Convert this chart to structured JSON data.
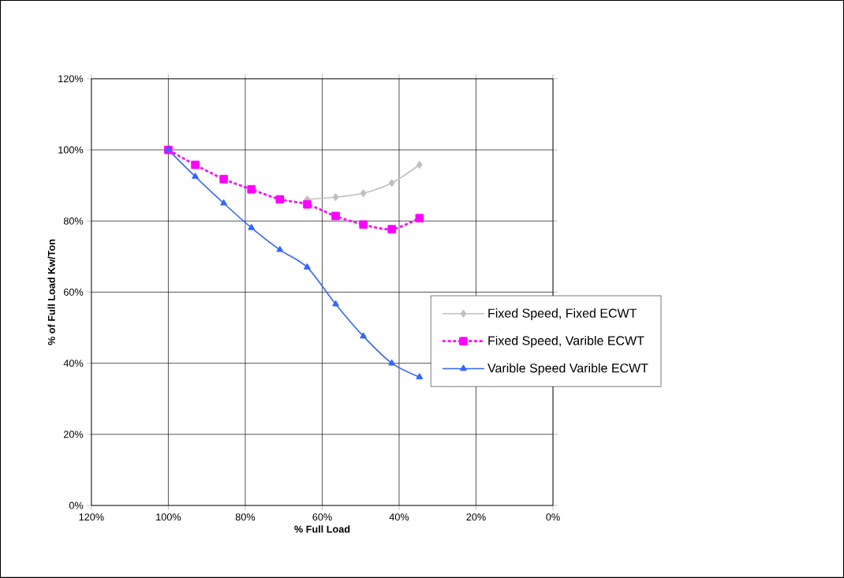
{
  "chart_data": {
    "type": "line",
    "xlabel": "% Full Load",
    "ylabel": "% of  Full Load Kw/Ton",
    "x": [
      100,
      93.0,
      85.6,
      78.4,
      71.0,
      63.9,
      56.5,
      49.3,
      41.9,
      34.7
    ],
    "series": [
      {
        "name": "Fixed Speed, Fixed ECWT",
        "color": "#c0c0c0",
        "marker": "diamond",
        "line_style": "solid",
        "values": [
          null,
          null,
          null,
          null,
          null,
          86.1,
          86.7,
          87.8,
          90.7,
          95.8
        ]
      },
      {
        "name": "Fixed Speed, Varible ECWT",
        "color": "#ff00ff",
        "marker": "square",
        "line_style": "dotted",
        "values": [
          100,
          95.8,
          91.8,
          88.9,
          86.1,
          84.7,
          81.4,
          79.0,
          77.7,
          80.8
        ]
      },
      {
        "name": "Varible Speed Varible ECWT",
        "color": "#3366ff",
        "marker": "triangle",
        "line_style": "solid",
        "values": [
          100,
          92.5,
          85.0,
          78.1,
          71.9,
          67.0,
          56.6,
          47.6,
          40.0,
          36.1
        ]
      }
    ],
    "xlim": [
      120,
      0
    ],
    "xticks": [
      {
        "value": 120,
        "label": "120%"
      },
      {
        "value": 100,
        "label": "100%"
      },
      {
        "value": 80,
        "label": "80%"
      },
      {
        "value": 60,
        "label": "60%"
      },
      {
        "value": 40,
        "label": "40%"
      },
      {
        "value": 20,
        "label": "20%"
      },
      {
        "value": 0,
        "label": "0%"
      }
    ],
    "ylim": [
      0,
      120
    ],
    "yticks": [
      {
        "value": 0,
        "label": "0%"
      },
      {
        "value": 20,
        "label": "20%"
      },
      {
        "value": 40,
        "label": "40%"
      },
      {
        "value": 60,
        "label": "60%"
      },
      {
        "value": 80,
        "label": "80%"
      },
      {
        "value": 100,
        "label": "100%"
      },
      {
        "value": 120,
        "label": "120%"
      }
    ],
    "grid": true,
    "legend": "right"
  }
}
